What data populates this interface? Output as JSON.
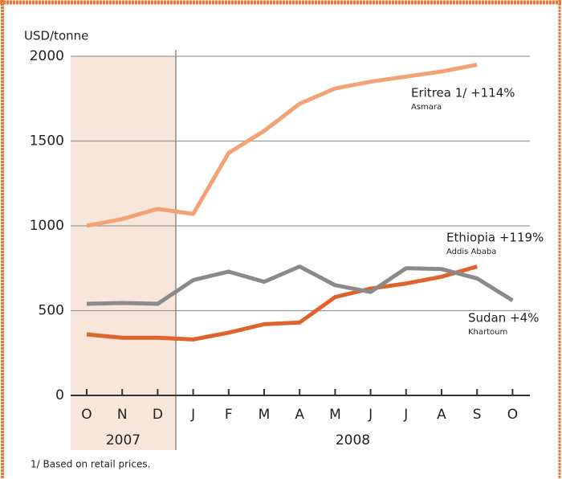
{
  "chart_data": {
    "type": "line",
    "y_label": "USD/tonne",
    "footnote": "1/ Based on retail prices.",
    "categories": [
      "O",
      "N",
      "D",
      "J",
      "F",
      "M",
      "A",
      "M",
      "J",
      "J",
      "A",
      "S",
      "O"
    ],
    "year_labels": [
      "2007",
      "2008"
    ],
    "ylim": [
      0,
      2000
    ],
    "yticks": [
      0,
      500,
      1000,
      1500,
      2000
    ],
    "grid": true,
    "series": [
      {
        "name": "Eritrea 1/ +114%",
        "location": "Asmara",
        "color": "#f2a274",
        "values": [
          1000,
          1040,
          1100,
          1070,
          1430,
          1560,
          1720,
          1810,
          1850,
          1880,
          1910,
          1950,
          null
        ]
      },
      {
        "name": "Ethiopia +119%",
        "location": "Addis Ababa",
        "color": "#e0622c",
        "values": [
          360,
          340,
          340,
          330,
          370,
          420,
          430,
          580,
          630,
          660,
          700,
          760,
          null
        ]
      },
      {
        "name": "Sudan +4%",
        "location": "Khartoum",
        "color": "#8a8a8a",
        "values": [
          540,
          545,
          540,
          680,
          730,
          670,
          760,
          650,
          610,
          750,
          745,
          690,
          560
        ]
      }
    ]
  }
}
